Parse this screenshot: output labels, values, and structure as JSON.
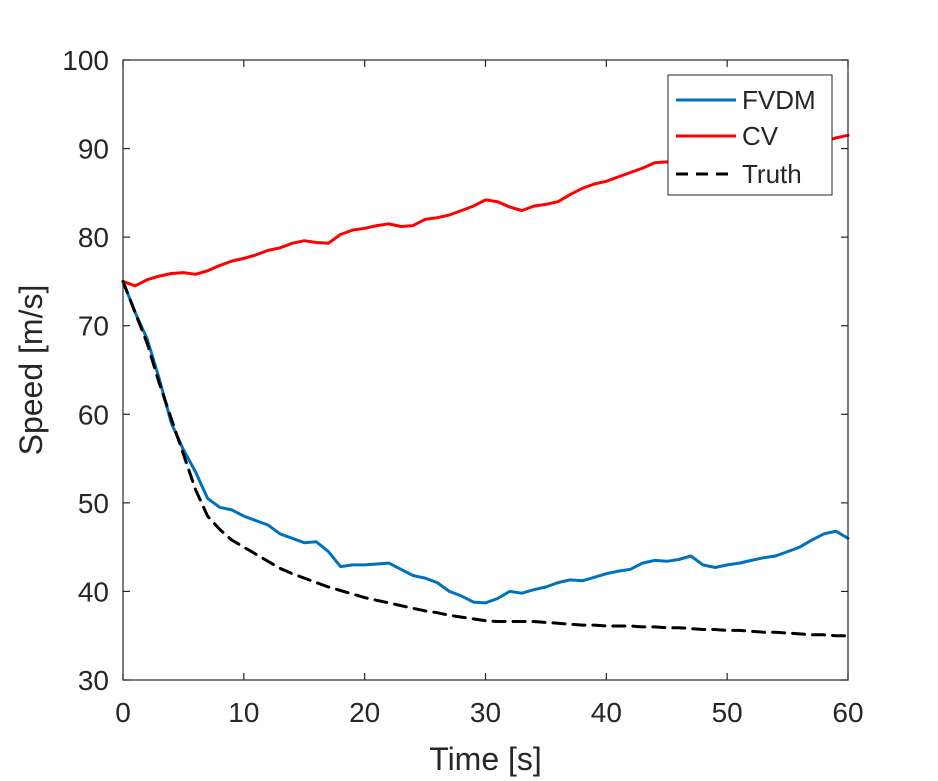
{
  "chart_data": {
    "type": "line",
    "xlabel": "Time [s]",
    "ylabel": "Speed [m/s]",
    "xlim": [
      0,
      60
    ],
    "ylim": [
      30,
      100
    ],
    "xticks": [
      0,
      10,
      20,
      30,
      40,
      50,
      60
    ],
    "yticks": [
      30,
      40,
      50,
      60,
      70,
      80,
      90,
      100
    ],
    "grid": false,
    "legend_position": "top-right",
    "series": [
      {
        "name": "FVDM",
        "color": "#0072BD",
        "style": "solid",
        "x": [
          0,
          1,
          2,
          3,
          4,
          5,
          6,
          7,
          8,
          9,
          10,
          11,
          12,
          13,
          14,
          15,
          16,
          17,
          18,
          19,
          20,
          21,
          22,
          23,
          24,
          25,
          26,
          27,
          28,
          29,
          30,
          31,
          32,
          33,
          34,
          35,
          36,
          37,
          38,
          39,
          40,
          41,
          42,
          43,
          44,
          45,
          46,
          47,
          48,
          49,
          50,
          51,
          52,
          53,
          54,
          55,
          56,
          57,
          58,
          59,
          60
        ],
        "y": [
          75,
          71.5,
          68.5,
          64,
          59,
          56,
          53.5,
          50.5,
          49.5,
          49.2,
          48.5,
          48,
          47.5,
          46.5,
          46,
          45.5,
          45.6,
          44.5,
          42.8,
          43,
          43,
          43.1,
          43.2,
          42.5,
          41.8,
          41.5,
          41,
          40,
          39.5,
          38.8,
          38.7,
          39.2,
          40,
          39.8,
          40.2,
          40.5,
          41,
          41.3,
          41.2,
          41.6,
          42,
          42.3,
          42.5,
          43.2,
          43.5,
          43.4,
          43.6,
          44,
          43,
          42.7,
          43,
          43.2,
          43.5,
          43.8,
          44,
          44.5,
          45,
          45.8,
          46.5,
          46.8,
          46
        ]
      },
      {
        "name": "CV",
        "color": "#FF0000",
        "style": "solid",
        "x": [
          0,
          1,
          2,
          3,
          4,
          5,
          6,
          7,
          8,
          9,
          10,
          11,
          12,
          13,
          14,
          15,
          16,
          17,
          18,
          19,
          20,
          21,
          22,
          23,
          24,
          25,
          26,
          27,
          28,
          29,
          30,
          31,
          32,
          33,
          34,
          35,
          36,
          37,
          38,
          39,
          40,
          41,
          42,
          43,
          44,
          45,
          46,
          47,
          48,
          49,
          50,
          51,
          52,
          53,
          54,
          55,
          56,
          57,
          58,
          59,
          60
        ],
        "y": [
          75,
          74.5,
          75.2,
          75.6,
          75.9,
          76,
          75.8,
          76.2,
          76.8,
          77.3,
          77.6,
          78,
          78.5,
          78.8,
          79.3,
          79.6,
          79.4,
          79.3,
          80.3,
          80.8,
          81,
          81.3,
          81.5,
          81.2,
          81.3,
          82,
          82.2,
          82.5,
          83,
          83.5,
          84.2,
          84,
          83.4,
          83,
          83.5,
          83.7,
          84,
          84.8,
          85.5,
          86,
          86.3,
          86.8,
          87.3,
          87.8,
          88.4,
          88.5,
          88,
          87.5,
          88.2,
          88.6,
          88.8,
          89,
          89.3,
          89.6,
          89.8,
          90,
          90.2,
          90.5,
          90.8,
          91.2,
          91.5
        ]
      },
      {
        "name": "Truth",
        "color": "#000000",
        "style": "dashed",
        "x": [
          0,
          1,
          2,
          3,
          4,
          5,
          6,
          7,
          8,
          9,
          10,
          11,
          12,
          13,
          14,
          15,
          16,
          17,
          18,
          19,
          20,
          21,
          22,
          23,
          24,
          25,
          26,
          27,
          28,
          29,
          30,
          31,
          32,
          33,
          34,
          35,
          36,
          37,
          38,
          39,
          40,
          41,
          42,
          43,
          44,
          45,
          46,
          47,
          48,
          49,
          50,
          51,
          52,
          53,
          54,
          55,
          56,
          57,
          58,
          59,
          60
        ],
        "y": [
          75,
          71.5,
          68,
          63.5,
          59.5,
          55.5,
          51.5,
          48.5,
          47,
          45.8,
          45,
          44.2,
          43.4,
          42.6,
          42,
          41.5,
          41,
          40.5,
          40.1,
          39.7,
          39.3,
          39,
          38.7,
          38.4,
          38.1,
          37.8,
          37.6,
          37.3,
          37.1,
          36.9,
          36.7,
          36.6,
          36.6,
          36.6,
          36.6,
          36.5,
          36.4,
          36.3,
          36.2,
          36.2,
          36.1,
          36.1,
          36.1,
          36,
          36,
          35.9,
          35.9,
          35.8,
          35.7,
          35.7,
          35.6,
          35.6,
          35.5,
          35.4,
          35.4,
          35.3,
          35.2,
          35.1,
          35.1,
          35,
          35
        ]
      }
    ]
  }
}
